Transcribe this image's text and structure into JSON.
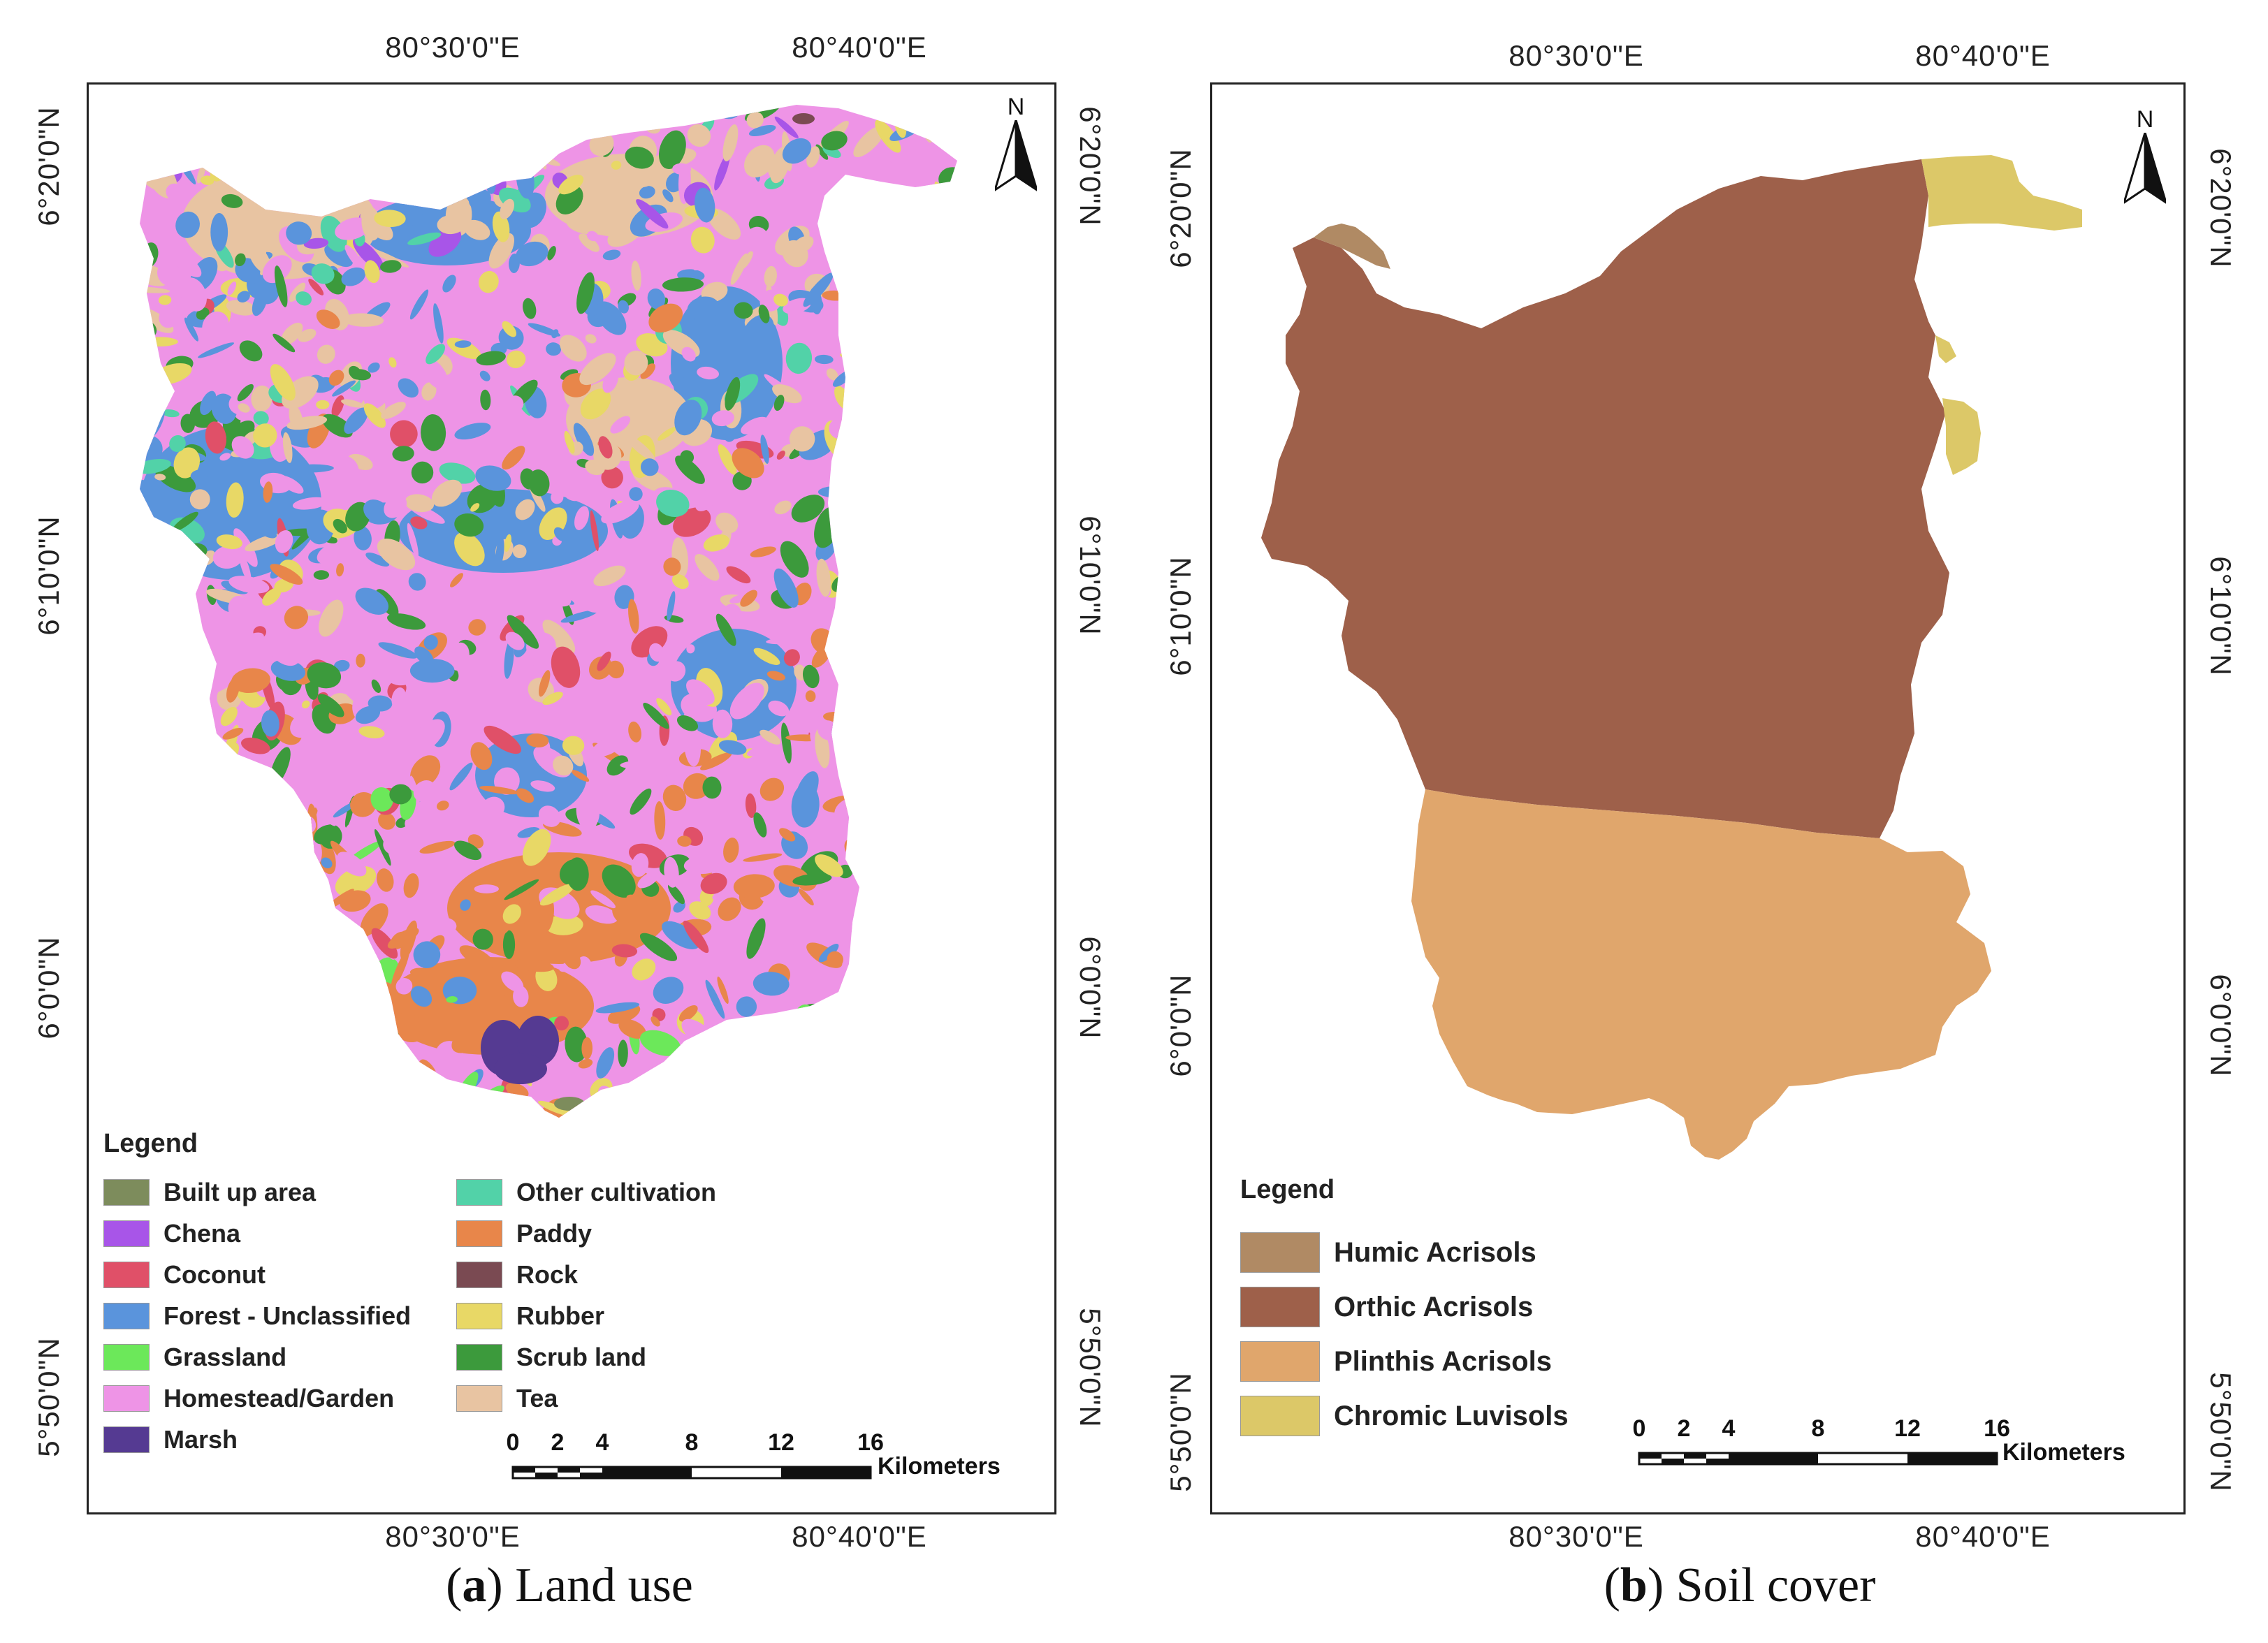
{
  "panel_a": {
    "caption_letter": "a",
    "caption_text": "Land use",
    "coords_top": [
      "80°30'0\"E",
      "80°40'0\"E"
    ],
    "coords_bottom": [
      "80°30'0\"E",
      "80°40'0\"E"
    ],
    "coords_left": [
      "6°20'0\"N",
      "6°10'0\"N",
      "6°0'0\"N",
      "5°50'0\"N"
    ],
    "coords_right": [
      "6°20'0\"N",
      "6°10'0\"N",
      "6°0'0\"N",
      "5°50'0\"N"
    ],
    "north": "N",
    "legend": {
      "title": "Legend",
      "items": [
        {
          "label": "Built up area",
          "color": "#7d8c5c"
        },
        {
          "label": "Chena",
          "color": "#a855e8"
        },
        {
          "label": "Coconut",
          "color": "#e05068"
        },
        {
          "label": "Forest - Unclassified",
          "color": "#5a94dc"
        },
        {
          "label": "Grassland",
          "color": "#6ce85a"
        },
        {
          "label": "Homestead/Garden",
          "color": "#ee94e6"
        },
        {
          "label": "Marsh",
          "color": "#553a92"
        },
        {
          "label": "Other cultivation",
          "color": "#52d2a8"
        },
        {
          "label": "Paddy",
          "color": "#e8864a"
        },
        {
          "label": "Rock",
          "color": "#7a4a52"
        },
        {
          "label": "Rubber",
          "color": "#e8d866"
        },
        {
          "label": "Scrub land",
          "color": "#3c9a3c"
        },
        {
          "label": "Tea",
          "color": "#e8c4a2"
        }
      ]
    },
    "scale": {
      "ticks": [
        "0",
        "2",
        "4",
        "8",
        "12",
        "16"
      ],
      "unit": "Kilometers"
    }
  },
  "panel_b": {
    "caption_letter": "b",
    "caption_text": "Soil cover",
    "coords_top": [
      "80°30'0\"E",
      "80°40'0\"E"
    ],
    "coords_bottom": [
      "80°30'0\"E",
      "80°40'0\"E"
    ],
    "coords_left": [
      "6°20'0\"N",
      "6°10'0\"N",
      "6°0'0\"N",
      "5°50'0\"N"
    ],
    "coords_right": [
      "6°20'0\"N",
      "6°10'0\"N",
      "6°0'0\"N",
      "5°50'0\"N"
    ],
    "north": "N",
    "legend": {
      "title": "Legend",
      "items": [
        {
          "label": "Humic Acrisols",
          "color": "#b08a64"
        },
        {
          "label": "Orthic Acrisols",
          "color": "#9e604a"
        },
        {
          "label": "Plinthis Acrisols",
          "color": "#e0a66c"
        },
        {
          "label": "Chromic Luvisols",
          "color": "#dcc868"
        }
      ]
    },
    "scale": {
      "ticks": [
        "0",
        "2",
        "4",
        "8",
        "12",
        "16"
      ],
      "unit": "Kilometers"
    }
  }
}
